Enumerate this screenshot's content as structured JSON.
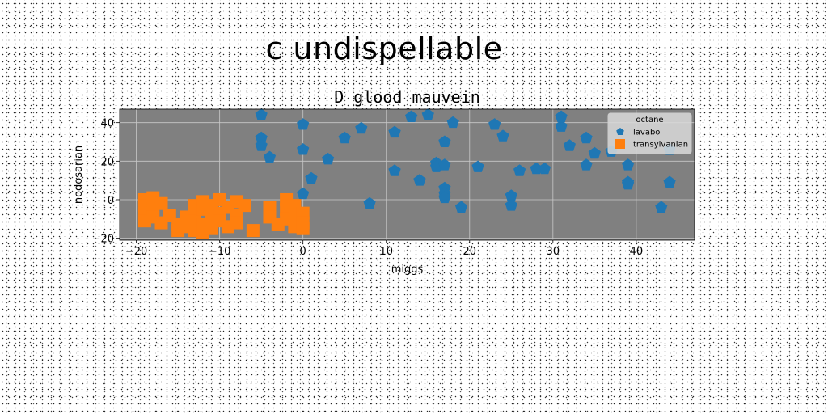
{
  "suptitle": "c undispellable",
  "chart_data": {
    "type": "scatter",
    "title": "D glood mauvein",
    "xlabel": "miggs",
    "ylabel": "nodosarian",
    "xlim": [
      -22,
      47
    ],
    "ylim": [
      -21,
      47
    ],
    "xticks": [
      -20,
      -10,
      0,
      10,
      20,
      30,
      40
    ],
    "yticks": [
      -20,
      0,
      20,
      40
    ],
    "grid": true,
    "background_color": "#808080",
    "legend": {
      "title": "octane",
      "placement": "top-right"
    },
    "series": [
      {
        "name": "lavabo",
        "marker": "pentagon",
        "color": "#1f77b4",
        "points": [
          [
            -5,
            44
          ],
          [
            -5,
            32
          ],
          [
            -5,
            28
          ],
          [
            -4,
            22
          ],
          [
            0,
            39
          ],
          [
            0,
            26
          ],
          [
            0,
            3
          ],
          [
            1,
            11
          ],
          [
            3,
            21
          ],
          [
            5,
            32
          ],
          [
            7,
            37
          ],
          [
            8,
            -2
          ],
          [
            11,
            35
          ],
          [
            11,
            15
          ],
          [
            13,
            43
          ],
          [
            14,
            10
          ],
          [
            15,
            44
          ],
          [
            16,
            19
          ],
          [
            16,
            17
          ],
          [
            17,
            30
          ],
          [
            17,
            18
          ],
          [
            17,
            6
          ],
          [
            17,
            3
          ],
          [
            17,
            1
          ],
          [
            18,
            40
          ],
          [
            19,
            -4
          ],
          [
            21,
            17
          ],
          [
            23,
            39
          ],
          [
            24,
            33
          ],
          [
            25,
            2
          ],
          [
            25,
            -3
          ],
          [
            26,
            15
          ],
          [
            28,
            16
          ],
          [
            29,
            16
          ],
          [
            31,
            43
          ],
          [
            31,
            38
          ],
          [
            32,
            28
          ],
          [
            34,
            32
          ],
          [
            34,
            18
          ],
          [
            35,
            24
          ],
          [
            37,
            25
          ],
          [
            39,
            18
          ],
          [
            39,
            9
          ],
          [
            39,
            8
          ],
          [
            43,
            -4
          ],
          [
            44,
            26
          ],
          [
            44,
            9
          ]
        ]
      },
      {
        "name": "transylvanian",
        "marker": "square",
        "color": "#ff7f0e",
        "points": [
          [
            -19,
            0
          ],
          [
            -19,
            -3
          ],
          [
            -19,
            -7
          ],
          [
            -19,
            -11
          ],
          [
            -18,
            1
          ],
          [
            -18,
            -5
          ],
          [
            -18,
            -9
          ],
          [
            -17,
            -2
          ],
          [
            -17,
            -12
          ],
          [
            -16,
            -8
          ],
          [
            -15,
            -13
          ],
          [
            -15,
            -16
          ],
          [
            -14,
            -9
          ],
          [
            -14,
            -14
          ],
          [
            -13,
            -3
          ],
          [
            -13,
            -7
          ],
          [
            -13,
            -11
          ],
          [
            -13,
            -16
          ],
          [
            -12,
            -1
          ],
          [
            -12,
            -5
          ],
          [
            -12,
            -13
          ],
          [
            -12,
            -17
          ],
          [
            -11,
            -9
          ],
          [
            -11,
            -3
          ],
          [
            -11,
            -15
          ],
          [
            -10,
            0
          ],
          [
            -10,
            -7
          ],
          [
            -10,
            -11
          ],
          [
            -9,
            -4
          ],
          [
            -9,
            -14
          ],
          [
            -8,
            -8
          ],
          [
            -8,
            -1
          ],
          [
            -8,
            -12
          ],
          [
            -7,
            -3
          ],
          [
            -6,
            -16
          ],
          [
            -4,
            -4
          ],
          [
            -4,
            -9
          ],
          [
            -3,
            -13
          ],
          [
            -2,
            0
          ],
          [
            -2,
            -5
          ],
          [
            -2,
            -10
          ],
          [
            -1,
            -3
          ],
          [
            -1,
            -8
          ],
          [
            -1,
            -14
          ],
          [
            0,
            -7
          ],
          [
            0,
            -12
          ],
          [
            0,
            -15
          ]
        ]
      }
    ]
  }
}
